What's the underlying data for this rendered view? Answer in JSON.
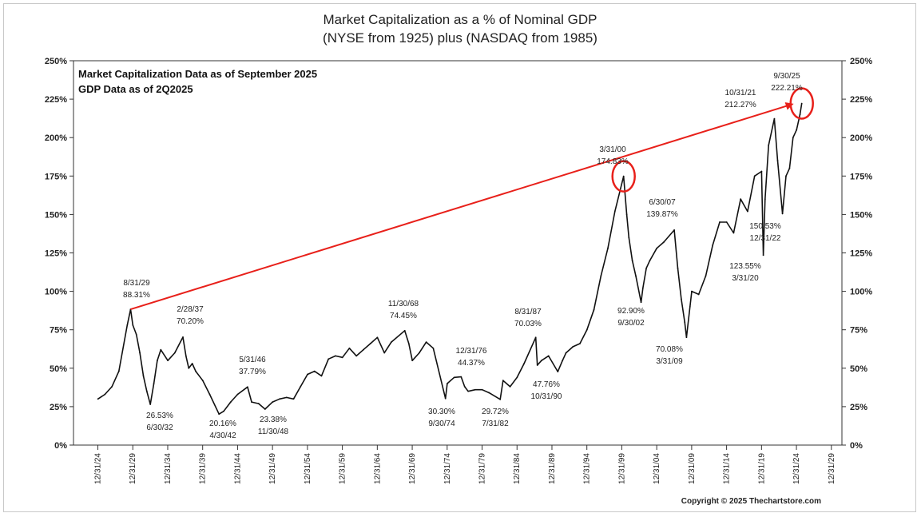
{
  "chart_data": {
    "type": "line",
    "title": "Market Capitalization as a % of Nominal GDP",
    "subtitle": "(NYSE from 1925) plus (NASDAQ from 1985)",
    "notes": [
      "Market Capitalization Data as of September 2025",
      "GDP Data as of 2Q2025"
    ],
    "ylabel": "",
    "xlabel": "",
    "ylim": [
      0,
      250
    ],
    "xlim": [
      1921.5,
      2031.5
    ],
    "y_ticks": [
      0,
      25,
      50,
      75,
      100,
      125,
      150,
      175,
      200,
      225,
      250
    ],
    "y_tick_labels": [
      "0%",
      "25%",
      "50%",
      "75%",
      "100%",
      "125%",
      "150%",
      "175%",
      "200%",
      "225%",
      "250%"
    ],
    "x_ticks": [
      1924.99,
      1929.99,
      1934.99,
      1939.99,
      1944.99,
      1949.99,
      1954.99,
      1959.99,
      1964.99,
      1969.99,
      1974.99,
      1979.99,
      1984.99,
      1989.99,
      1994.99,
      1999.99,
      2004.99,
      2009.99,
      2014.99,
      2019.99,
      2024.99,
      2029.99
    ],
    "x_tick_labels": [
      "12/31/24",
      "12/31/29",
      "12/31/34",
      "12/31/39",
      "12/31/44",
      "12/31/49",
      "12/31/54",
      "12/31/59",
      "12/31/64",
      "12/31/69",
      "12/31/74",
      "12/31/79",
      "12/31/84",
      "12/31/89",
      "12/31/94",
      "12/31/99",
      "12/31/04",
      "12/31/09",
      "12/31/14",
      "12/31/19",
      "12/31/24",
      "12/31/29"
    ],
    "grid": false,
    "series": [
      {
        "name": "Market Capitalization as a % of Nominal GDP",
        "color": "#111111",
        "x": [
          1925.0,
          1926.0,
          1927.0,
          1928.0,
          1929.2,
          1929.67,
          1930.0,
          1930.5,
          1931.0,
          1931.5,
          1932.0,
          1932.5,
          1933.0,
          1933.5,
          1934.0,
          1935.0,
          1936.0,
          1937.17,
          1937.6,
          1938.0,
          1938.5,
          1939.0,
          1940.0,
          1941.0,
          1942.33,
          1943.0,
          1944.0,
          1945.0,
          1946.42,
          1947.0,
          1948.0,
          1948.92,
          1950.0,
          1951.0,
          1952.0,
          1953.0,
          1954.0,
          1955.0,
          1956.0,
          1957.0,
          1958.0,
          1959.0,
          1960.0,
          1961.0,
          1962.0,
          1963.0,
          1964.0,
          1965.0,
          1966.0,
          1967.0,
          1968.92,
          1969.5,
          1970.0,
          1971.0,
          1972.0,
          1973.0,
          1974.75,
          1975.0,
          1976.0,
          1976.99,
          1977.5,
          1978.0,
          1979.0,
          1980.0,
          1981.0,
          1982.58,
          1983.0,
          1984.0,
          1985.0,
          1986.0,
          1987.67,
          1987.9,
          1988.5,
          1989.5,
          1990.83,
          1991.5,
          1992.0,
          1993.0,
          1994.0,
          1995.0,
          1996.0,
          1997.0,
          1998.0,
          1999.0,
          2000.25,
          2000.7,
          2001.0,
          2001.5,
          2002.0,
          2002.75,
          2003.0,
          2003.5,
          2004.0,
          2005.0,
          2006.0,
          2007.5,
          2008.0,
          2008.5,
          2009.0,
          2009.25,
          2009.75,
          2010.0,
          2011.0,
          2012.0,
          2013.0,
          2014.0,
          2015.0,
          2016.0,
          2017.0,
          2018.0,
          2019.0,
          2020.0,
          2020.25,
          2020.5,
          2021.0,
          2021.83,
          2022.3,
          2022.99,
          2023.5,
          2024.0,
          2024.5,
          2025.0,
          2025.5,
          2025.75
        ],
        "values": [
          30,
          33,
          38,
          48,
          78,
          88.31,
          78,
          72,
          60,
          45,
          35,
          26.53,
          40,
          55,
          62,
          55,
          60,
          70.2,
          58,
          50,
          53,
          48,
          42,
          33,
          20.16,
          22,
          28,
          33,
          37.79,
          28,
          27,
          23.38,
          28,
          30,
          31,
          30,
          38,
          46,
          48,
          45,
          56,
          58,
          57,
          63,
          58,
          62,
          66,
          70,
          60,
          67,
          74.45,
          66,
          55,
          60,
          67,
          63,
          30.3,
          40,
          44,
          44.37,
          38,
          35,
          36,
          36,
          34,
          29.72,
          42,
          38,
          44,
          53,
          70.03,
          52,
          55,
          58,
          47.76,
          55,
          60,
          64,
          66,
          75,
          88,
          110,
          128,
          152,
          174.83,
          150,
          135,
          120,
          110,
          92.9,
          102,
          115,
          120,
          128,
          132,
          139.87,
          115,
          95,
          80,
          70.08,
          90,
          100,
          98,
          110,
          130,
          145,
          145,
          138,
          160,
          152,
          175,
          178,
          123.55,
          160,
          195,
          212.27,
          185,
          150.53,
          175,
          180,
          200,
          205,
          215,
          222.21
        ]
      }
    ],
    "annotations": [
      {
        "date": "8/31/29",
        "value": "88.31%"
      },
      {
        "date": "6/30/32",
        "value": "26.53%"
      },
      {
        "date": "2/28/37",
        "value": "70.20%"
      },
      {
        "date": "4/30/42",
        "value": "20.16%"
      },
      {
        "date": "5/31/46",
        "value": "37.79%"
      },
      {
        "date": "11/30/48",
        "value": "23.38%"
      },
      {
        "date": "11/30/68",
        "value": "74.45%"
      },
      {
        "date": "9/30/74",
        "value": "30.30%"
      },
      {
        "date": "12/31/76",
        "value": "44.37%"
      },
      {
        "date": "7/31/82",
        "value": "29.72%"
      },
      {
        "date": "8/31/87",
        "value": "70.03%"
      },
      {
        "date": "10/31/90",
        "value": "47.76%"
      },
      {
        "date": "3/31/00",
        "value": "174.83%"
      },
      {
        "date": "9/30/02",
        "value": "92.90%"
      },
      {
        "date": "6/30/07",
        "value": "139.87%"
      },
      {
        "date": "3/31/09",
        "value": "70.08%"
      },
      {
        "date": "3/31/20",
        "value": "123.55%"
      },
      {
        "date": "10/31/21",
        "value": "212.27%"
      },
      {
        "date": "12/31/22",
        "value": "150.53%"
      },
      {
        "date": "9/30/25",
        "value": "222.21%"
      }
    ],
    "trend_arrow": {
      "from": {
        "x": 1929.67,
        "y": 88.31
      },
      "to": {
        "x": 2025.75,
        "y": 222.21
      },
      "color": "#e8201a"
    },
    "highlight_circles": [
      {
        "x": 2000.25,
        "y": 174.83,
        "color": "#e8201a"
      },
      {
        "x": 2025.75,
        "y": 222.21,
        "color": "#e8201a"
      }
    ],
    "copyright": "Copyright © 2025 Thechartstore.com"
  }
}
